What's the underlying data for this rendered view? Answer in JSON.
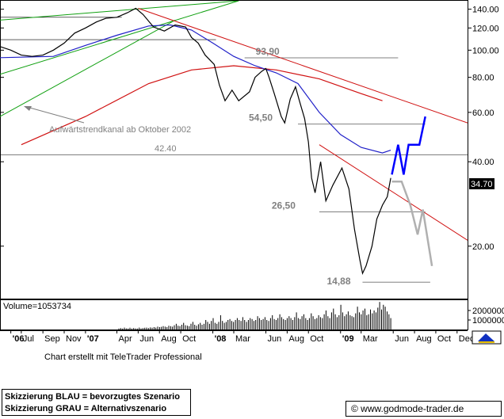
{
  "chart_data": {
    "type": "line",
    "scale": "log",
    "ylim": [
      13,
      150
    ],
    "xlim": [
      "2006-05-01",
      "2009-12-31"
    ],
    "yticks": [
      {
        "value": 140,
        "label": "140.00"
      },
      {
        "value": 120,
        "label": "120.00"
      },
      {
        "value": 100,
        "label": "100.00"
      },
      {
        "value": 80,
        "label": "80.00"
      },
      {
        "value": 60,
        "label": "60.00"
      },
      {
        "value": 40,
        "label": "40.00"
      },
      {
        "value": 20,
        "label": "20.00"
      }
    ],
    "last_price_label": "34.70",
    "xticks": [
      {
        "date": "2006-06-01",
        "label": "'06",
        "bold": true
      },
      {
        "date": "2006-07-01",
        "label": "Jul",
        "bold": false
      },
      {
        "date": "2006-09-01",
        "label": "Sep",
        "bold": false
      },
      {
        "date": "2006-11-01",
        "label": "Nov",
        "bold": false
      },
      {
        "date": "2007-01-01",
        "label": "'07",
        "bold": true
      },
      {
        "date": "2007-04-01",
        "label": "Apr",
        "bold": false
      },
      {
        "date": "2007-06-01",
        "label": "Jun",
        "bold": false
      },
      {
        "date": "2007-08-01",
        "label": "Aug",
        "bold": false
      },
      {
        "date": "2007-10-01",
        "label": "Oct",
        "bold": false
      },
      {
        "date": "2008-01-01",
        "label": "'08",
        "bold": true
      },
      {
        "date": "2008-03-01",
        "label": "Mar",
        "bold": false
      },
      {
        "date": "2008-06-01",
        "label": "Jun",
        "bold": false
      },
      {
        "date": "2008-08-01",
        "label": "Aug",
        "bold": false
      },
      {
        "date": "2008-10-01",
        "label": "Oct",
        "bold": false
      },
      {
        "date": "2009-01-01",
        "label": "'09",
        "bold": true
      },
      {
        "date": "2009-03-01",
        "label": "Mar",
        "bold": false
      },
      {
        "date": "2009-06-01",
        "label": "Jun",
        "bold": false
      },
      {
        "date": "2009-08-01",
        "label": "Aug",
        "bold": false
      },
      {
        "date": "2009-10-01",
        "label": "Oct",
        "bold": false
      },
      {
        "date": "2009-12-01",
        "label": "Dec",
        "bold": false
      }
    ],
    "price": [
      [
        "2006-05-01",
        103
      ],
      [
        "2006-06-01",
        100
      ],
      [
        "2006-07-01",
        96
      ],
      [
        "2006-08-01",
        95
      ],
      [
        "2006-09-01",
        96
      ],
      [
        "2006-10-01",
        100
      ],
      [
        "2006-11-01",
        106
      ],
      [
        "2006-12-01",
        115
      ],
      [
        "2007-01-01",
        120
      ],
      [
        "2007-02-01",
        126
      ],
      [
        "2007-03-01",
        130
      ],
      [
        "2007-04-01",
        131
      ],
      [
        "2007-05-01",
        136
      ],
      [
        "2007-05-25",
        141
      ],
      [
        "2007-06-15",
        134
      ],
      [
        "2007-07-15",
        121
      ],
      [
        "2007-08-15",
        117
      ],
      [
        "2007-09-15",
        123
      ],
      [
        "2007-10-15",
        121
      ],
      [
        "2007-11-01",
        111
      ],
      [
        "2007-11-20",
        106
      ],
      [
        "2007-12-10",
        96
      ],
      [
        "2008-01-05",
        89
      ],
      [
        "2008-01-20",
        75
      ],
      [
        "2008-02-05",
        66
      ],
      [
        "2008-02-25",
        72
      ],
      [
        "2008-03-15",
        66
      ],
      [
        "2008-04-15",
        71
      ],
      [
        "2008-05-01",
        80
      ],
      [
        "2008-05-20",
        84
      ],
      [
        "2008-06-01",
        86
      ],
      [
        "2008-06-10",
        80
      ],
      [
        "2008-06-25",
        70
      ],
      [
        "2008-07-15",
        58
      ],
      [
        "2008-07-25",
        55
      ],
      [
        "2008-08-10",
        67
      ],
      [
        "2008-08-25",
        74
      ],
      [
        "2008-09-05",
        66
      ],
      [
        "2008-09-20",
        57
      ],
      [
        "2008-10-01",
        47
      ],
      [
        "2008-10-10",
        35
      ],
      [
        "2008-10-20",
        31
      ],
      [
        "2008-11-05",
        40
      ],
      [
        "2008-11-20",
        29
      ],
      [
        "2008-12-10",
        33
      ],
      [
        "2009-01-05",
        38
      ],
      [
        "2009-01-25",
        32
      ],
      [
        "2009-02-10",
        23
      ],
      [
        "2009-02-25",
        18
      ],
      [
        "2009-03-05",
        16
      ],
      [
        "2009-03-15",
        17
      ],
      [
        "2009-04-01",
        20
      ],
      [
        "2009-04-15",
        25
      ],
      [
        "2009-05-01",
        28
      ],
      [
        "2009-05-15",
        30
      ],
      [
        "2009-05-25",
        35
      ]
    ],
    "ma_blue": [
      [
        "2006-05-01",
        94
      ],
      [
        "2006-10-01",
        95
      ],
      [
        "2007-01-01",
        104
      ],
      [
        "2007-04-01",
        113
      ],
      [
        "2007-07-01",
        122
      ],
      [
        "2007-09-01",
        123
      ],
      [
        "2007-11-01",
        118
      ],
      [
        "2008-01-01",
        106
      ],
      [
        "2008-03-01",
        95
      ],
      [
        "2008-05-01",
        88
      ],
      [
        "2008-07-01",
        83
      ],
      [
        "2008-09-01",
        76
      ],
      [
        "2008-11-01",
        60
      ],
      [
        "2009-01-01",
        50
      ],
      [
        "2009-03-01",
        45
      ],
      [
        "2009-05-01",
        43
      ],
      [
        "2009-05-25",
        44
      ]
    ],
    "ma_red": [
      [
        "2006-07-01",
        46
      ],
      [
        "2007-01-01",
        58
      ],
      [
        "2007-07-01",
        76
      ],
      [
        "2007-11-01",
        85
      ],
      [
        "2008-03-01",
        88
      ],
      [
        "2008-07-01",
        85
      ],
      [
        "2008-11-01",
        79
      ],
      [
        "2009-03-01",
        70
      ],
      [
        "2009-05-01",
        66
      ]
    ],
    "trend_channel": {
      "upper": [
        [
          "2006-05-01",
          128
        ],
        [
          "2008-03-15",
          150
        ]
      ],
      "mid": [
        [
          "2006-05-01",
          82
        ],
        [
          "2008-03-15",
          150
        ]
      ],
      "lower": [
        [
          "2006-05-01",
          58
        ],
        [
          "2007-09-15",
          128
        ]
      ]
    },
    "downtrend_long": [
      [
        "2007-06-01",
        141
      ],
      [
        "2009-12-31",
        55
      ]
    ],
    "downtrend_short": [
      [
        "2008-11-01",
        46
      ],
      [
        "2009-12-31",
        21
      ]
    ],
    "levels": [
      {
        "name": "93,90",
        "value": 93.9,
        "from": "2008-04-01",
        "to": "2009-06-15"
      },
      {
        "name": "54,50",
        "value": 54.5,
        "from": "2008-09-01",
        "to": "2009-09-01"
      },
      {
        "name": "42.40",
        "value": 42.4,
        "from": "2006-05-01",
        "to": "2009-12-31"
      },
      {
        "name": "26,50",
        "value": 26.5,
        "from": "2008-11-01",
        "to": "2009-09-01"
      },
      {
        "name": "14,88",
        "value": 14.88,
        "from": "2009-03-05",
        "to": "2009-09-15"
      }
    ],
    "extra_levels": [
      {
        "value": 109,
        "from": "2006-05-01",
        "to": "2008-01-10"
      },
      {
        "value": 131,
        "from": "2006-05-01",
        "to": "2007-04-15"
      }
    ],
    "scenario_blue": [
      [
        "2009-05-28",
        36
      ],
      [
        "2009-06-15",
        46
      ],
      [
        "2009-07-01",
        36
      ],
      [
        "2009-07-15",
        46
      ],
      [
        "2009-08-15",
        46
      ],
      [
        "2009-09-01",
        58
      ]
    ],
    "scenario_grey": [
      [
        "2009-05-28",
        34
      ],
      [
        "2009-06-25",
        34
      ],
      [
        "2009-07-20",
        28
      ],
      [
        "2009-08-10",
        22
      ],
      [
        "2009-08-25",
        27
      ],
      [
        "2009-09-20",
        17
      ]
    ],
    "volume": {
      "label": "Volume=1053734",
      "yticks": [
        {
          "value": 2000000,
          "label": "2000000"
        },
        {
          "value": 1000000,
          "label": "1000000"
        }
      ],
      "ymax": 3000000,
      "values": [
        0.1,
        0.15,
        0.1,
        0.2,
        0.12,
        0.1,
        0.18,
        0.1,
        0.15,
        0.12,
        0.1,
        0.2,
        0.12,
        0.15,
        0.18,
        0.2,
        0.15,
        0.22,
        0.18,
        0.25,
        0.2,
        0.3,
        0.25,
        0.28,
        0.35,
        0.3,
        0.25,
        0.4,
        0.35,
        0.3,
        0.45,
        0.6,
        0.4,
        0.35,
        0.5,
        0.7,
        0.45,
        0.4,
        0.35,
        0.6,
        0.8,
        0.5,
        0.4,
        0.55,
        0.7,
        0.5,
        0.6,
        1.0,
        0.8,
        0.6,
        0.9,
        1.2,
        0.7,
        0.6,
        0.8,
        1.5,
        0.9,
        0.7,
        0.8,
        1.0,
        1.1,
        0.9,
        0.8,
        1.0,
        1.2,
        1.0,
        0.9,
        1.3,
        1.0,
        0.8,
        1.0,
        1.2,
        1.1,
        0.9,
        1.0,
        1.4,
        1.2,
        1.0,
        1.1,
        1.3,
        1.0,
        0.9,
        1.2,
        1.5,
        1.1,
        1.0,
        1.2,
        1.6,
        1.3,
        1.1,
        1.0,
        1.2,
        1.4,
        1.2,
        1.0,
        1.3,
        1.8,
        1.2,
        1.1,
        1.4,
        1.6,
        1.2,
        1.0,
        1.2,
        1.7,
        1.4,
        1.1,
        1.2,
        1.5,
        1.3,
        1.2,
        1.6,
        2.0,
        1.4,
        1.2,
        1.8,
        2.2,
        1.6,
        1.3,
        1.5,
        2.6,
        1.8,
        1.4,
        1.6,
        1.9,
        1.5,
        1.4,
        1.3,
        1.7,
        2.4,
        1.8,
        1.6,
        2.0,
        2.2,
        1.5,
        1.6,
        2.1,
        1.7,
        2.0,
        1.8,
        2.3,
        2.9,
        2.1,
        2.6,
        2.4,
        1.9,
        1.6,
        1.2
      ]
    }
  },
  "annotations": {
    "channel_label": "Aufwärtstrendkanal ab Oktober 2002"
  },
  "footer": {
    "credit": "Chart erstellt mit TeleTrader Professional",
    "legend_blue": "Skizzierung BLAU = bevorzugtes Szenario",
    "legend_grey": "Skizzierung GRAU = Alternativszenario",
    "site": "© www.godmode-trader.de"
  },
  "colors": {
    "price": "#000000",
    "ma_blue": "#2020c8",
    "ma_red": "#d01010",
    "channel": "#10a010",
    "downtrend": "#d01010",
    "levels": "#808080",
    "scenario_blue": "#0000ff",
    "scenario_grey": "#b0b0b0",
    "axis_frame": "#000000",
    "volume": "#000000"
  }
}
